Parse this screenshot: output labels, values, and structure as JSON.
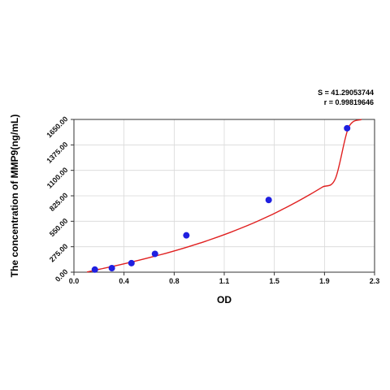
{
  "chart_data": {
    "type": "scatter",
    "xlabel": "OD",
    "ylabel": "The concentration of MMP9(ng/mL)",
    "xlim": [
      0.0,
      2.3
    ],
    "ylim": [
      0.0,
      1650.0
    ],
    "x_ticks": [
      "0.0",
      "0.4",
      "0.8",
      "1.1",
      "1.5",
      "1.9",
      "2.3"
    ],
    "x_tick_values": [
      0.0,
      0.383,
      0.767,
      1.15,
      1.533,
      1.917,
      2.3
    ],
    "y_ticks": [
      "0.00",
      "275.00",
      "550.00",
      "825.00",
      "1100.00",
      "1375.00",
      "1650.00"
    ],
    "y_tick_values": [
      0,
      275,
      550,
      825,
      1100,
      1375,
      1650
    ],
    "grid": true,
    "points": {
      "x": [
        0.16,
        0.29,
        0.44,
        0.62,
        0.86,
        1.49,
        2.09
      ],
      "y": [
        28,
        44,
        98,
        198,
        398,
        780,
        1555
      ],
      "color": "#1f1fe0"
    },
    "fit_curve": {
      "x": [
        0.1,
        0.2,
        0.3,
        0.4,
        0.5,
        0.6,
        0.7,
        0.8,
        0.9,
        1.0,
        1.1,
        1.2,
        1.3,
        1.4,
        1.5,
        1.6,
        1.7,
        1.8,
        1.9,
        2.0,
        2.1,
        2.2
      ],
      "y": [
        2,
        33,
        64,
        96,
        130,
        166,
        203,
        243,
        286,
        331,
        380,
        432,
        488,
        548,
        612,
        682,
        756,
        835,
        919,
        1009,
        1559,
        1656
      ],
      "color": "#e02020"
    },
    "annotations": {
      "s": "S = 41.29053744",
      "r": "r = 0.99819646"
    }
  }
}
